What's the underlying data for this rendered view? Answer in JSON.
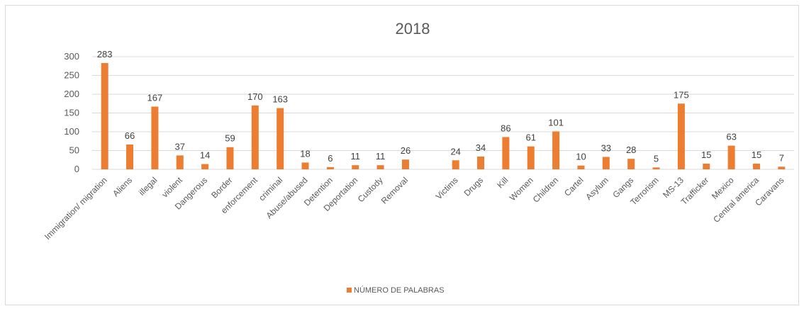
{
  "chart_data": {
    "type": "bar",
    "title": "2018",
    "xlabel": "",
    "ylabel": "",
    "ylim": [
      0,
      300
    ],
    "yticks": [
      0,
      50,
      100,
      150,
      200,
      250,
      300
    ],
    "grid": true,
    "legend_position": "bottom",
    "bar_color": "#ED7D31",
    "categories": [
      "Immigration/ migration",
      "Aliens",
      "illegal",
      "violent",
      "Dangerous",
      "Border",
      "enforcement",
      "criminal",
      "Abuse/abused",
      "Detention",
      "Deportation",
      "Custody",
      "Removal",
      "",
      "Victims",
      "Drugs",
      "Kill",
      "Women",
      "Children",
      "Cartel",
      "Asylum",
      "Gangs",
      "Terrorism",
      "MS-13",
      "Trafficker",
      "Mexico",
      "Central america",
      "Caravans"
    ],
    "series": [
      {
        "name": "NÚMERO DE PALABRAS",
        "values": [
          283,
          66,
          167,
          37,
          14,
          59,
          170,
          163,
          18,
          6,
          11,
          11,
          26,
          null,
          24,
          34,
          86,
          61,
          101,
          10,
          33,
          28,
          5,
          175,
          15,
          63,
          15,
          7
        ]
      }
    ]
  }
}
